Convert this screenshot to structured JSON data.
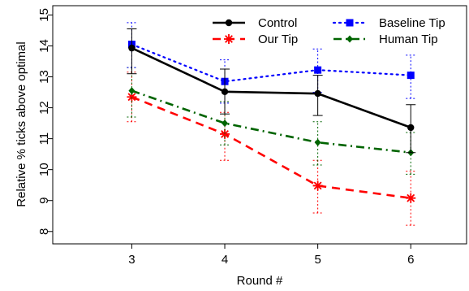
{
  "chart_data": {
    "type": "line",
    "xlabel": "Round #",
    "ylabel": "Relative % ticks above optimal",
    "x": [
      3,
      4,
      5,
      6
    ],
    "xlim": [
      2.15,
      6.6
    ],
    "ylim": [
      7.6,
      15.3
    ],
    "xticks": [
      "3",
      "4",
      "5",
      "6"
    ],
    "yticks": [
      "8",
      "9",
      "10",
      "11",
      "12",
      "13",
      "14",
      "15"
    ],
    "grid": false,
    "legend_position": "top-right",
    "series": [
      {
        "name": "Control",
        "color": "#000000",
        "line_style": "solid",
        "marker": "circle",
        "values": [
          13.93,
          12.52,
          12.46,
          11.36
        ],
        "error_low": [
          13.1,
          11.8,
          11.75,
          10.55
        ],
        "error_high": [
          14.55,
          13.25,
          13.05,
          12.1
        ]
      },
      {
        "name": "Our Tip",
        "color": "#ff0000",
        "line_style": "dashed",
        "marker": "asterisk",
        "values": [
          12.35,
          11.15,
          9.48,
          9.08
        ],
        "error_low": [
          11.55,
          10.3,
          8.6,
          8.2
        ],
        "error_high": [
          13.15,
          11.85,
          10.3,
          9.95
        ]
      },
      {
        "name": "Baseline Tip",
        "color": "#0000ff",
        "line_style": "dotted",
        "marker": "square",
        "values": [
          14.05,
          12.85,
          13.22,
          13.05
        ],
        "error_low": [
          13.3,
          12.15,
          12.5,
          12.3
        ],
        "error_high": [
          14.75,
          13.55,
          13.9,
          13.7
        ]
      },
      {
        "name": "Human Tip",
        "color": "#006400",
        "line_style": "dashdot",
        "marker": "diamond",
        "values": [
          12.55,
          11.5,
          10.88,
          10.55
        ],
        "error_low": [
          11.7,
          10.8,
          10.15,
          9.85
        ],
        "error_high": [
          13.3,
          12.2,
          11.55,
          11.2
        ]
      }
    ]
  }
}
